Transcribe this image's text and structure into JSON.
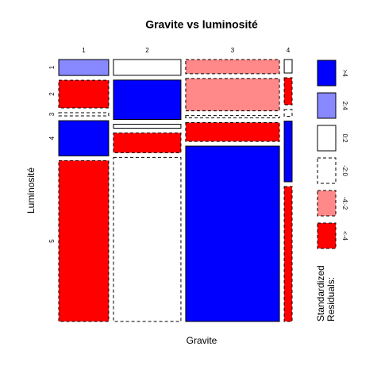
{
  "chart_data": {
    "type": "mosaic",
    "title": "Gravite vs luminosité",
    "x_label": "Gravite",
    "y_label": "Luminosité",
    "categories": [
      "1",
      "2",
      "3",
      "4"
    ],
    "series": [
      {
        "name": "1",
        "values": [
          15,
          20,
          25,
          2
        ],
        "residuals": [
          "2:4",
          "0:2",
          "-4:-2",
          "0:2"
        ]
      },
      {
        "name": "2",
        "values": [
          26,
          50,
          57,
          4
        ],
        "residuals": [
          "<-4",
          ">4",
          "-4:-2",
          "<-4"
        ]
      },
      {
        "name": "3",
        "values": [
          3,
          5,
          4,
          1
        ],
        "residuals": [
          "-2:0",
          "0:2",
          "-2:0",
          "-2:0"
        ]
      },
      {
        "name": "4",
        "values": [
          33,
          25,
          33,
          9
        ],
        "residuals": [
          ">4",
          "<-4",
          "<-4",
          ">4"
        ]
      },
      {
        "name": "5",
        "values": [
          151,
          208,
          309,
          20
        ],
        "residuals": [
          "<-4",
          "-2:0",
          ">4",
          "<-4"
        ]
      }
    ],
    "legend_title": [
      "Standardized",
      "Residuals:"
    ],
    "legend": [
      {
        "label": ">4",
        "color": "#0000ff",
        "dashed": false
      },
      {
        "label": "2:4",
        "color": "#8888ff",
        "dashed": false
      },
      {
        "label": "0:2",
        "color": "#ffffff",
        "dashed": false
      },
      {
        "label": "-2:0",
        "color": "#ffffff",
        "dashed": true
      },
      {
        "label": "-4:-2",
        "color": "#ff8888",
        "dashed": true
      },
      {
        "label": "<-4",
        "color": "#ff0000",
        "dashed": true
      }
    ]
  }
}
